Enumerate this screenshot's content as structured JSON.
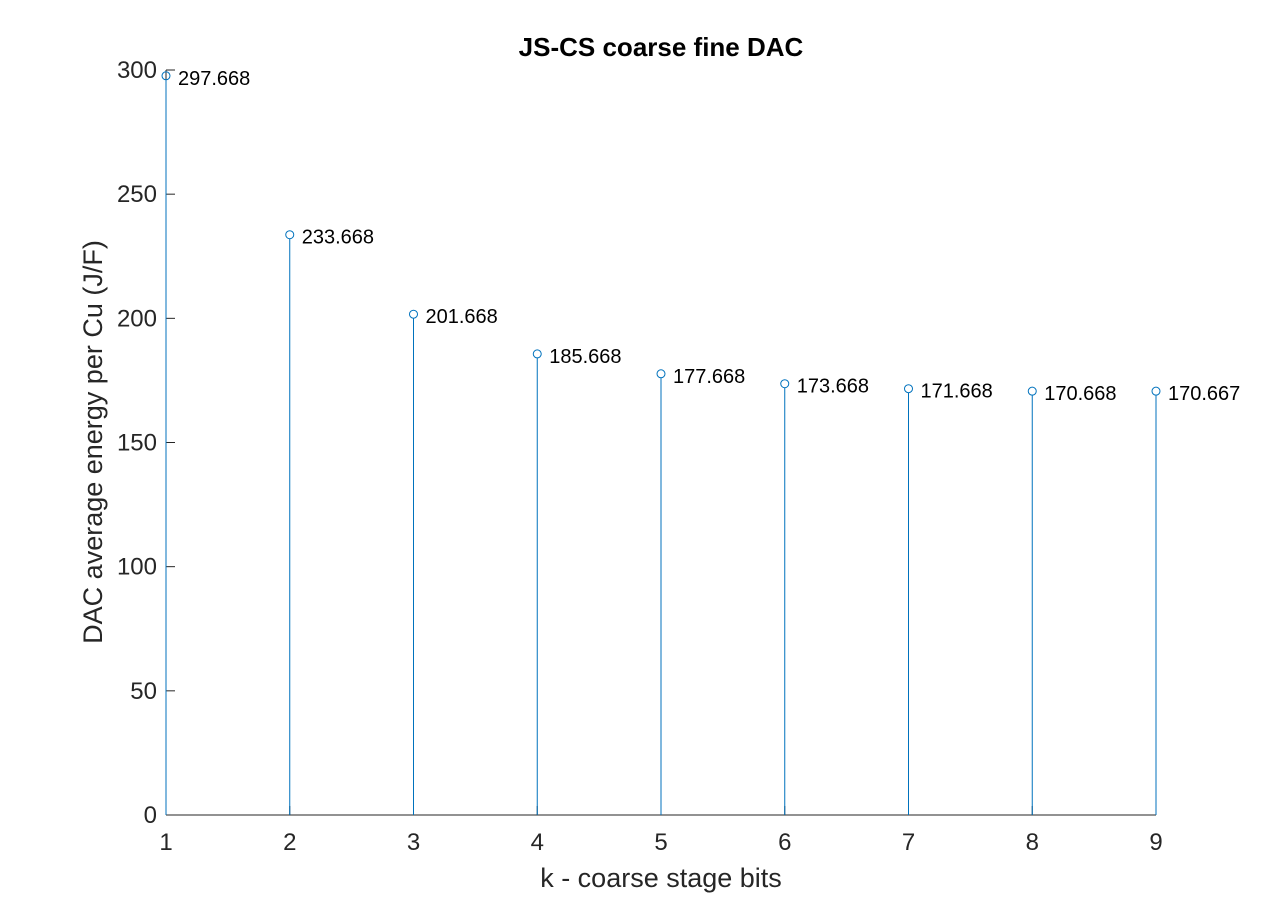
{
  "chart_data": {
    "type": "stem",
    "title": "JS-CS coarse fine DAC",
    "xlabel": "k - coarse stage bits",
    "ylabel": "DAC average energy per Cu (J/F)",
    "x": [
      1,
      2,
      3,
      4,
      5,
      6,
      7,
      8,
      9
    ],
    "values": [
      297.668,
      233.668,
      201.668,
      185.668,
      177.668,
      173.668,
      171.668,
      170.668,
      170.667
    ],
    "data_labels": [
      "297.668",
      "233.668",
      "201.668",
      "185.668",
      "177.668",
      "173.668",
      "171.668",
      "170.668",
      "170.667"
    ],
    "xlim": [
      1,
      9
    ],
    "ylim": [
      0,
      300
    ],
    "xticks": [
      1,
      2,
      3,
      4,
      5,
      6,
      7,
      8,
      9
    ],
    "yticks": [
      0,
      50,
      100,
      150,
      200,
      250,
      300
    ],
    "grid": false,
    "legend": "none",
    "series_color": "#0072BD",
    "axis_color": "#262626"
  }
}
